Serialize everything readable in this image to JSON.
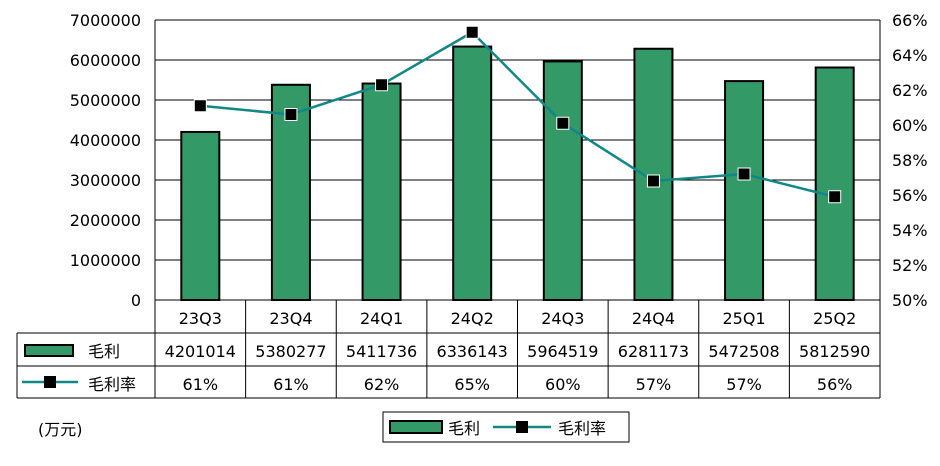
{
  "chart_data": {
    "type": "bar",
    "categories": [
      "23Q3",
      "23Q4",
      "24Q1",
      "24Q2",
      "24Q3",
      "24Q4",
      "25Q1",
      "25Q2"
    ],
    "series": [
      {
        "name": "毛利",
        "type": "bar",
        "axis": "left",
        "values": [
          4201014,
          5380277,
          5411736,
          6336143,
          5964519,
          6281173,
          5472508,
          5812590
        ],
        "value_labels": [
          "4201014",
          "5380277",
          "5411736",
          "6336143",
          "5964519",
          "6281173",
          "5472508",
          "5812590"
        ],
        "color": "#339966"
      },
      {
        "name": "毛利率",
        "type": "line",
        "axis": "right",
        "values": [
          61.1,
          60.6,
          62.3,
          65.3,
          60.1,
          56.8,
          57.2,
          55.9
        ],
        "value_labels": [
          "61%",
          "61%",
          "62%",
          "65%",
          "60%",
          "57%",
          "57%",
          "56%"
        ],
        "color": "#118888",
        "marker_color": "#000000"
      }
    ],
    "y_left": {
      "lim": [
        0,
        7000000
      ],
      "ticks": [
        "0",
        "1000000",
        "2000000",
        "3000000",
        "4000000",
        "5000000",
        "6000000",
        "7000000"
      ]
    },
    "y_right": {
      "lim": [
        50,
        66
      ],
      "ticks": [
        "50%",
        "52%",
        "54%",
        "56%",
        "58%",
        "60%",
        "62%",
        "64%",
        "66%"
      ]
    },
    "grid": true,
    "data_table": true,
    "legend_position": "bottom-center",
    "unit_note": "(万元)"
  }
}
